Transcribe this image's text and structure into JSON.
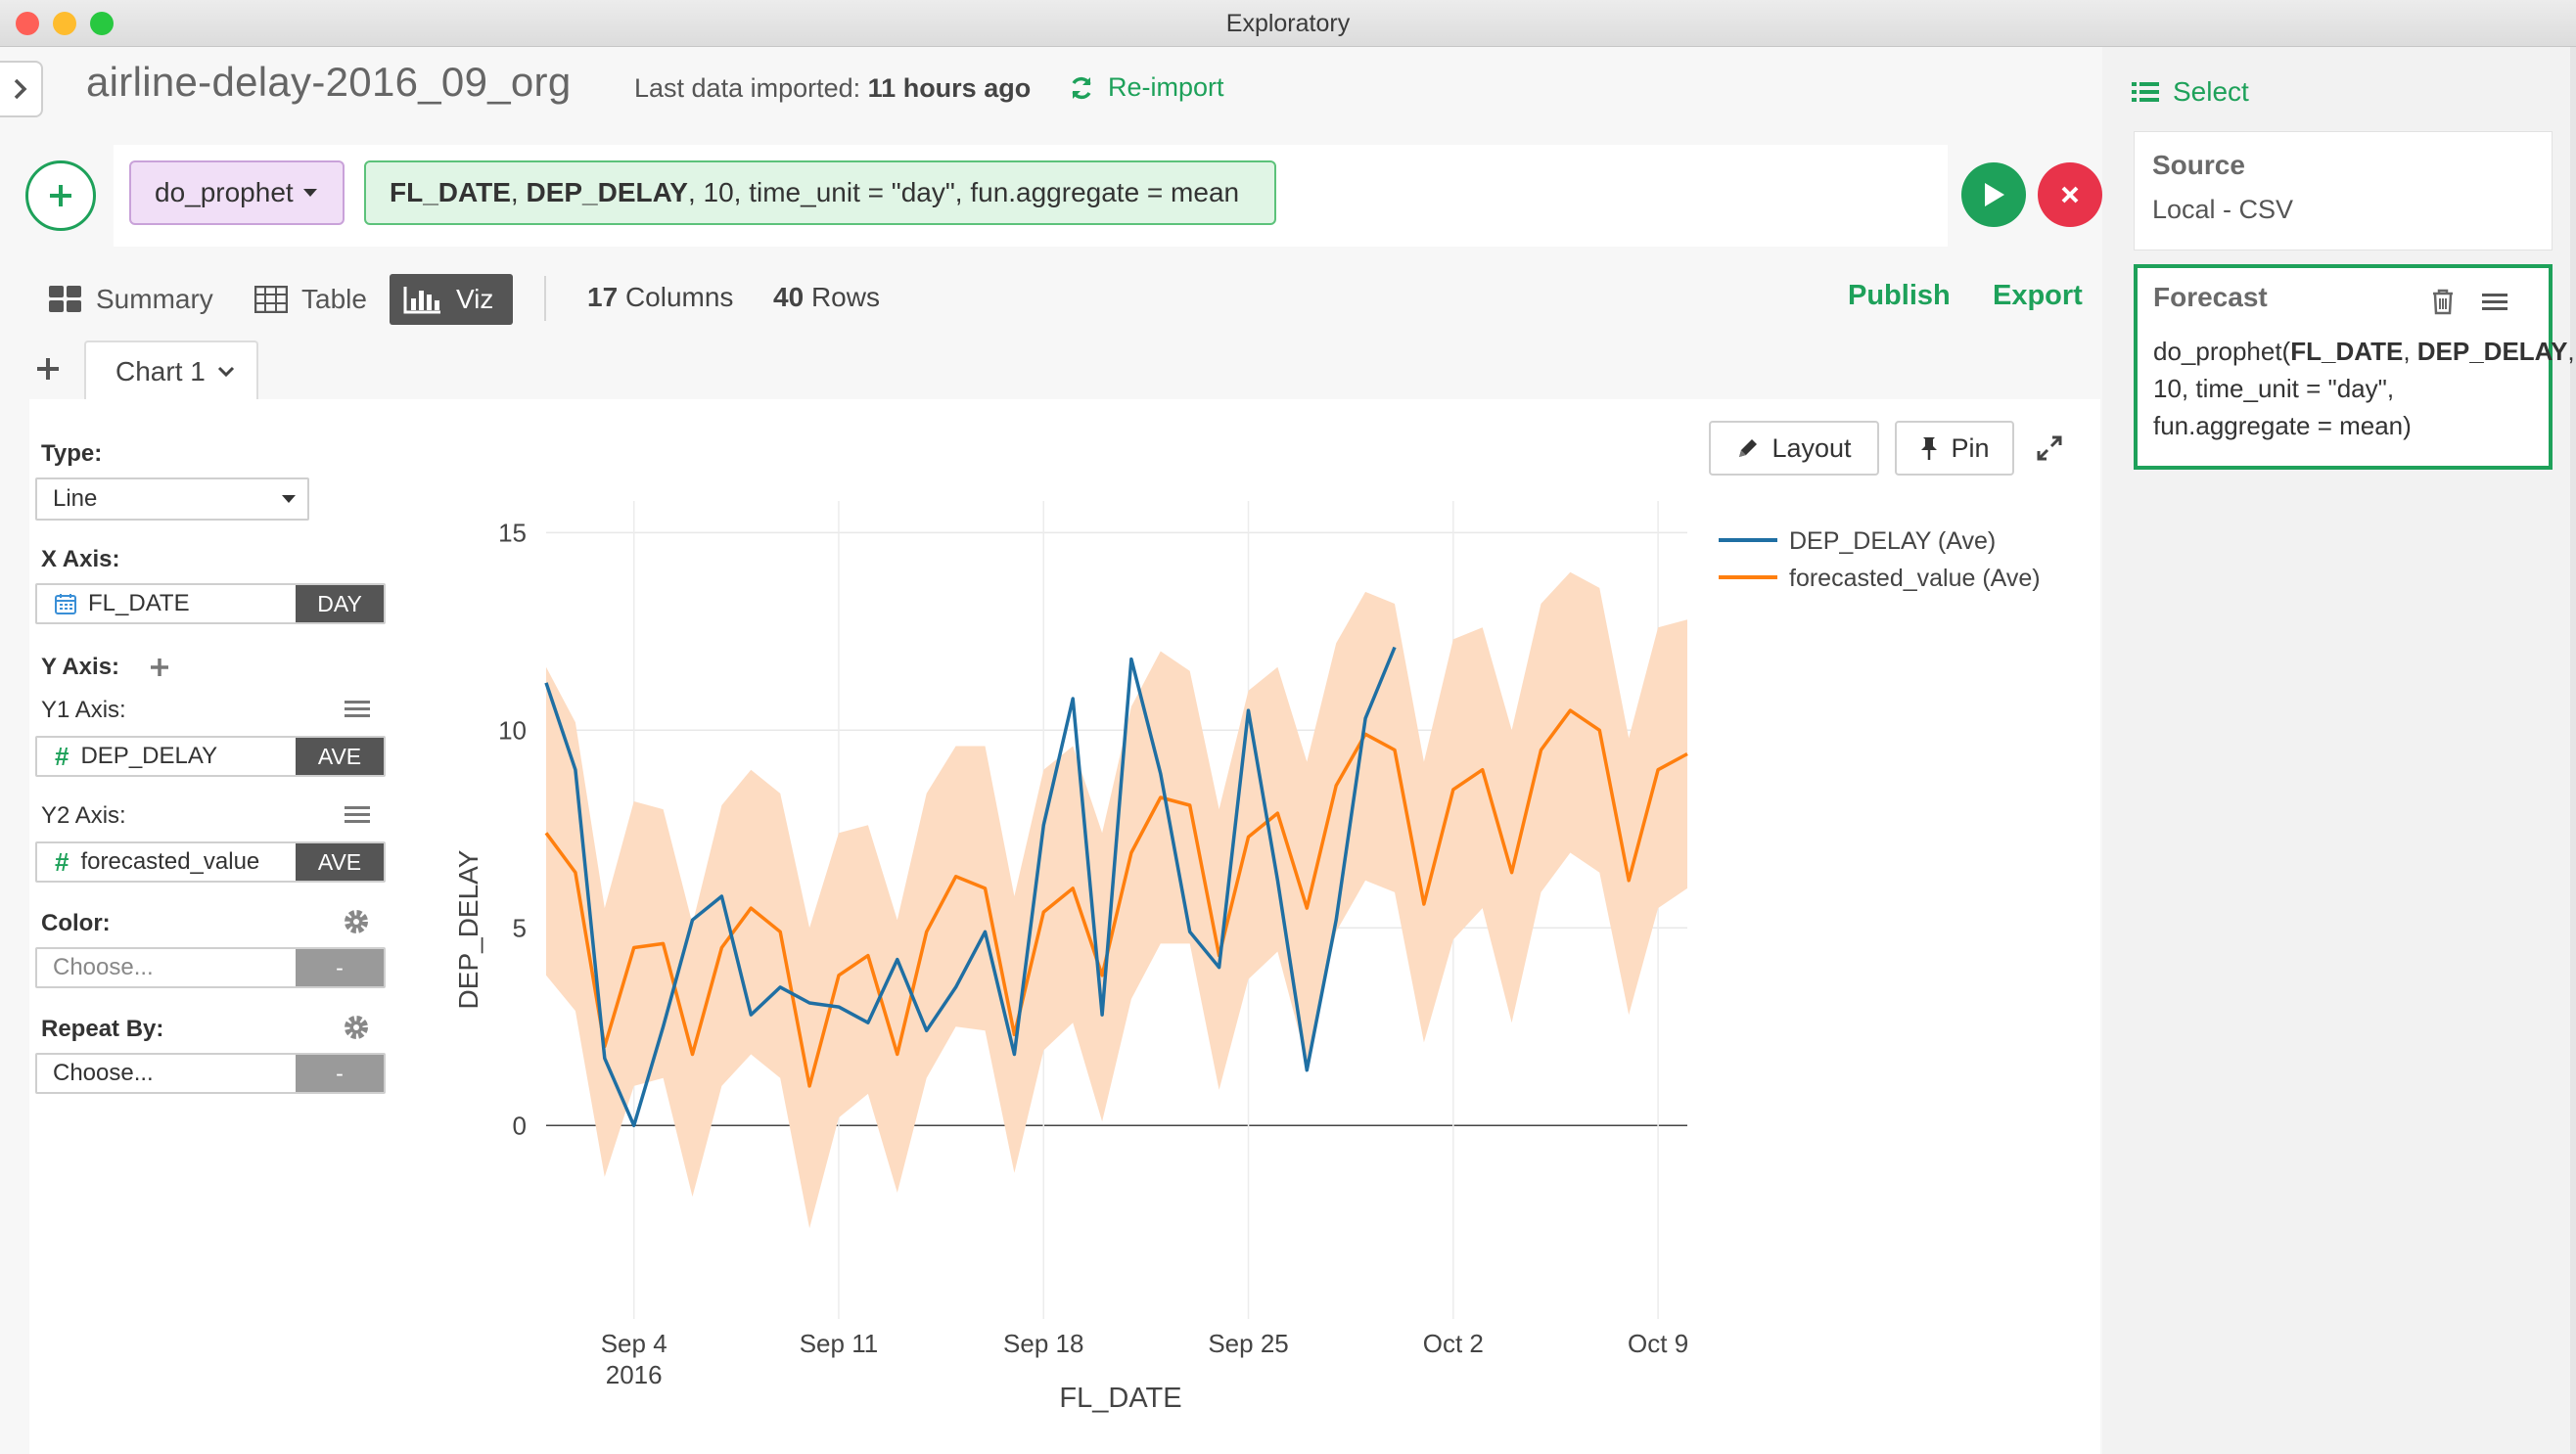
{
  "window": {
    "title": "Exploratory"
  },
  "header": {
    "dataset_name": "airline-delay-2016_09_org",
    "import_label": "Last data imported:",
    "import_time": "11 hours ago",
    "reimport_label": "Re-import"
  },
  "command": {
    "function_name": "do_prophet",
    "args": {
      "arg1": "FL_DATE",
      "sep1": ", ",
      "arg2": "DEP_DELAY",
      "rest": ", 10, time_unit = \"day\", fun.aggregate = mean"
    }
  },
  "view_tabs": {
    "summary": "Summary",
    "table": "Table",
    "viz": "Viz"
  },
  "stats": {
    "columns_num": "17",
    "columns_label": "Columns",
    "rows_num": "40",
    "rows_label": "Rows"
  },
  "actions": {
    "publish": "Publish",
    "export": "Export"
  },
  "chart_tab": {
    "label": "Chart 1"
  },
  "config": {
    "type_label": "Type:",
    "type_value": "Line",
    "x_axis_label": "X Axis:",
    "x_field": "FL_DATE",
    "x_unit": "DAY",
    "y_axis_label": "Y Axis:",
    "y1_label": "Y1 Axis:",
    "y1_field": "DEP_DELAY",
    "y1_agg": "AVE",
    "y2_label": "Y2 Axis:",
    "y2_field": "forecasted_value",
    "y2_agg": "AVE",
    "color_label": "Color:",
    "color_placeholder": "Choose...",
    "color_agg": "-",
    "repeat_label": "Repeat By:",
    "repeat_placeholder": "Choose...",
    "repeat_agg": "-"
  },
  "chart_controls": {
    "layout": "Layout",
    "pin": "Pin"
  },
  "right_panel": {
    "select_label": "Select",
    "source_title": "Source",
    "source_value": "Local - CSV",
    "step_title": "Forecast",
    "step_fn": "do_prophet(",
    "step_arg1": "FL_DATE",
    "step_sep": ", ",
    "step_arg2": "DEP_DELAY",
    "step_rest": ", 10, time_unit = \"day\", fun.aggregate = mean)"
  },
  "colors": {
    "accent": "#1ea15a",
    "series_actual": "#1f6fa3",
    "series_forecast": "#ff7f0e",
    "band": "#fddcc2",
    "cancel": "#e8334a"
  },
  "chart_data": {
    "type": "line",
    "xlabel": "FL_DATE",
    "ylabel": "DEP_DELAY",
    "ylim": [
      -4.4,
      15.8
    ],
    "xlim": [
      "2016-09-01",
      "2016-10-10"
    ],
    "x_ticks": [
      {
        "date": "2016-09-04",
        "label": "Sep 4",
        "sub": "2016"
      },
      {
        "date": "2016-09-11",
        "label": "Sep 11",
        "sub": ""
      },
      {
        "date": "2016-09-18",
        "label": "Sep 18",
        "sub": ""
      },
      {
        "date": "2016-09-25",
        "label": "Sep 25",
        "sub": ""
      },
      {
        "date": "2016-10-02",
        "label": "Oct 2",
        "sub": ""
      },
      {
        "date": "2016-10-09",
        "label": "Oct 9",
        "sub": ""
      }
    ],
    "y_ticks": [
      0,
      5,
      10,
      15
    ],
    "grid": true,
    "legend_position": "top-right",
    "x_dates": [
      "2016-09-01",
      "2016-09-02",
      "2016-09-03",
      "2016-09-04",
      "2016-09-05",
      "2016-09-06",
      "2016-09-07",
      "2016-09-08",
      "2016-09-09",
      "2016-09-10",
      "2016-09-11",
      "2016-09-12",
      "2016-09-13",
      "2016-09-14",
      "2016-09-15",
      "2016-09-16",
      "2016-09-17",
      "2016-09-18",
      "2016-09-19",
      "2016-09-20",
      "2016-09-21",
      "2016-09-22",
      "2016-09-23",
      "2016-09-24",
      "2016-09-25",
      "2016-09-26",
      "2016-09-27",
      "2016-09-28",
      "2016-09-29",
      "2016-09-30",
      "2016-10-01",
      "2016-10-02",
      "2016-10-03",
      "2016-10-04",
      "2016-10-05",
      "2016-10-06",
      "2016-10-07",
      "2016-10-08",
      "2016-10-09",
      "2016-10-10"
    ],
    "series": [
      {
        "name": "DEP_DELAY (Ave)",
        "color": "#1f6fa3",
        "values": [
          11.2,
          9.0,
          1.7,
          0.0,
          2.5,
          5.2,
          5.8,
          2.8,
          3.5,
          3.1,
          3.0,
          2.6,
          4.2,
          2.4,
          3.5,
          4.9,
          1.8,
          7.6,
          10.8,
          2.8,
          11.8,
          8.9,
          4.9,
          4.0,
          10.5,
          6.2,
          1.4,
          5.2,
          10.3,
          12.1
        ]
      },
      {
        "name": "forecasted_value (Ave)",
        "color": "#ff7f0e",
        "values": [
          7.4,
          6.4,
          2.0,
          4.5,
          4.6,
          1.8,
          4.5,
          5.5,
          4.9,
          1.0,
          3.8,
          4.3,
          1.8,
          4.9,
          6.3,
          6.0,
          2.3,
          5.4,
          6.0,
          3.8,
          6.9,
          8.3,
          8.1,
          4.3,
          7.3,
          7.9,
          5.5,
          8.6,
          9.9,
          9.5,
          5.6,
          8.5,
          9.0,
          6.4,
          9.5,
          10.5,
          10.0,
          6.2,
          9.0,
          9.4
        ]
      }
    ],
    "band": {
      "name": "forecast interval",
      "upper": [
        11.6,
        10.2,
        5.5,
        8.2,
        8.0,
        5.1,
        8.1,
        9.0,
        8.4,
        5.0,
        7.4,
        7.6,
        5.2,
        8.4,
        9.6,
        9.6,
        5.8,
        9.0,
        9.6,
        7.4,
        10.6,
        12.0,
        11.5,
        8.0,
        11.0,
        11.6,
        9.2,
        12.2,
        13.5,
        13.2,
        9.2,
        12.3,
        12.6,
        10.0,
        13.2,
        14.0,
        13.6,
        9.8,
        12.6,
        12.8
      ],
      "lower": [
        3.8,
        2.9,
        -1.3,
        1.0,
        1.2,
        -1.8,
        1.0,
        1.8,
        1.2,
        -2.6,
        0.2,
        0.8,
        -1.7,
        1.2,
        2.5,
        2.4,
        -1.2,
        1.9,
        2.6,
        0.1,
        3.2,
        4.6,
        4.6,
        0.9,
        3.7,
        4.4,
        1.6,
        4.9,
        6.2,
        5.9,
        2.1,
        4.7,
        5.5,
        2.6,
        5.9,
        6.9,
        6.4,
        2.8,
        5.5,
        6.0
      ]
    }
  }
}
